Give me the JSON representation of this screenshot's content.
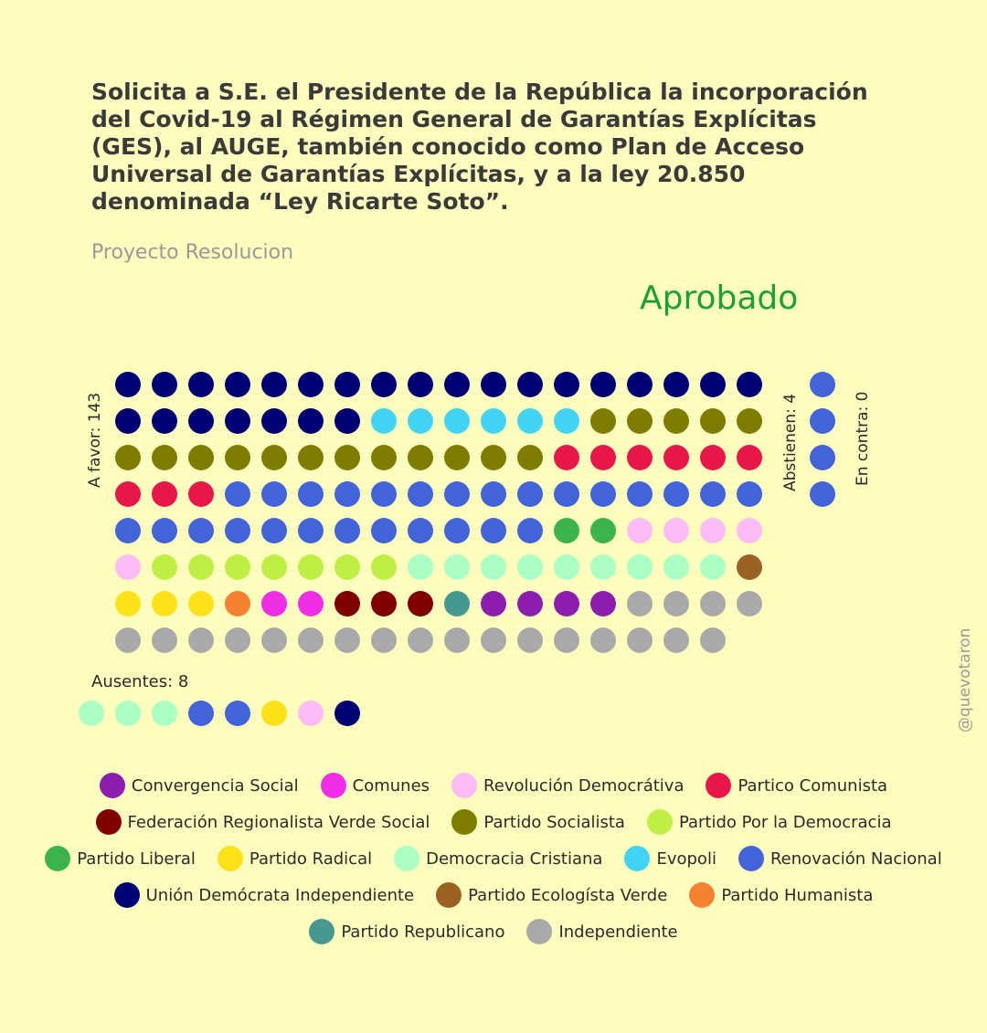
{
  "title": "Solicita a S.E. el Presidente de la República la incorporación del Covid-19 al Régimen General de Garantías Explícitas (GES), al AUGE, también conocido como Plan de Acceso Universal de Garantías Explícitas, y a la ley 20.850 denominada “Ley Ricarte Soto”.",
  "subtitle": "Proyecto Resolucion",
  "result": "Aprobado",
  "credit": "@quevotaron",
  "colors": {
    "result": "#1aa035",
    "background": "#fdfdbe"
  },
  "chart_data": {
    "type": "dot-matrix",
    "parties": [
      {
        "key": "cs",
        "name": "Convergencia Social",
        "color": "#8c1fb0"
      },
      {
        "key": "com",
        "name": "Comunes",
        "color": "#f02ee6"
      },
      {
        "key": "rd",
        "name": "Revolución Democrátiva",
        "color": "#fcbcf5"
      },
      {
        "key": "pc",
        "name": "Partico Comunista",
        "color": "#e8174a"
      },
      {
        "key": "frvs",
        "name": "Federación Regionalista Verde Social",
        "color": "#800000"
      },
      {
        "key": "ps",
        "name": "Partido Socialista",
        "color": "#7f7d00"
      },
      {
        "key": "ppd",
        "name": "Partido Por la Democracia",
        "color": "#bfee45"
      },
      {
        "key": "pl",
        "name": "Partido Liberal",
        "color": "#3cb44b"
      },
      {
        "key": "pr",
        "name": "Partido Radical",
        "color": "#ffe119"
      },
      {
        "key": "dc",
        "name": "Democracia Cristiana",
        "color": "#aaffc3"
      },
      {
        "key": "evo",
        "name": "Evopoli",
        "color": "#42d4f4"
      },
      {
        "key": "rn",
        "name": "Renovación Nacional",
        "color": "#4363d8"
      },
      {
        "key": "udi",
        "name": "Unión Demócrata Independiente",
        "color": "#000075"
      },
      {
        "key": "pev",
        "name": "Partido Ecologísta Verde",
        "color": "#9a6324"
      },
      {
        "key": "ph",
        "name": "Partido Humanista",
        "color": "#f58231"
      },
      {
        "key": "rep",
        "name": "Partido Republicano",
        "color": "#469990"
      },
      {
        "key": "ind",
        "name": "Independiente",
        "color": "#a9a9a9"
      }
    ],
    "legend_rows": [
      [
        "cs",
        "com",
        "rd",
        "pc"
      ],
      [
        "frvs",
        "ps",
        "ppd"
      ],
      [
        "pl",
        "pr",
        "dc",
        "evo",
        "rn"
      ],
      [
        "udi",
        "pev",
        "ph"
      ],
      [
        "rep",
        "ind"
      ]
    ],
    "groups": [
      {
        "label": "A favor: 143",
        "count": 143,
        "per_row": 18,
        "sequence": [
          {
            "party": "udi",
            "n": 25
          },
          {
            "party": "evo",
            "n": 6
          },
          {
            "party": "ps",
            "n": 17
          },
          {
            "party": "pc",
            "n": 9
          },
          {
            "party": "rn",
            "n": 27
          },
          {
            "party": "pl",
            "n": 2
          },
          {
            "party": "rd",
            "n": 5
          },
          {
            "party": "ppd",
            "n": 7
          },
          {
            "party": "dc",
            "n": 9
          },
          {
            "party": "pev",
            "n": 1
          },
          {
            "party": "pr",
            "n": 3
          },
          {
            "party": "ph",
            "n": 1
          },
          {
            "party": "com",
            "n": 2
          },
          {
            "party": "frvs",
            "n": 3
          },
          {
            "party": "rep",
            "n": 1
          },
          {
            "party": "cs",
            "n": 4
          },
          {
            "party": "ind",
            "n": 21
          }
        ]
      },
      {
        "label": "Abstienen: 4",
        "count": 4,
        "per_row": 1,
        "sequence": [
          {
            "party": "rn",
            "n": 4
          }
        ]
      },
      {
        "label": "En contra: 0",
        "count": 0,
        "per_row": 1,
        "sequence": []
      },
      {
        "label": "Ausentes: 8",
        "count": 8,
        "per_row": 8,
        "sequence": [
          {
            "party": "dc",
            "n": 3
          },
          {
            "party": "rn",
            "n": 2
          },
          {
            "party": "pr",
            "n": 1
          },
          {
            "party": "rd",
            "n": 1
          },
          {
            "party": "udi",
            "n": 1
          }
        ]
      }
    ]
  }
}
